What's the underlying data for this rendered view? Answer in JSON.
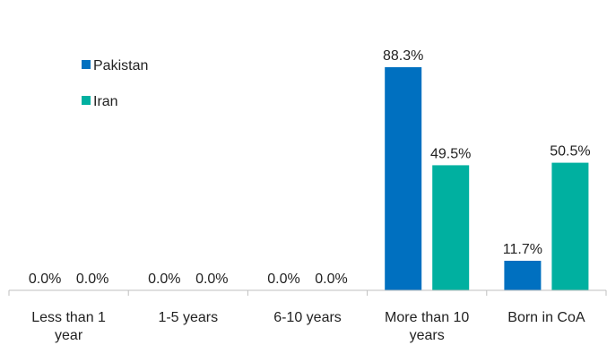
{
  "chart_data": {
    "type": "bar",
    "categories": [
      [
        "Less than 1",
        "year"
      ],
      [
        "1-5 years"
      ],
      [
        "6-10 years"
      ],
      [
        "More than 10",
        "years"
      ],
      [
        "Born in CoA"
      ]
    ],
    "series": [
      {
        "name": "Pakistan",
        "values": [
          0.0,
          0.0,
          0.0,
          88.3,
          11.7
        ],
        "labels": [
          "0.0%",
          "0.0%",
          "0.0%",
          "88.3%",
          "11.7%"
        ]
      },
      {
        "name": "Iran",
        "values": [
          0.0,
          0.0,
          0.0,
          49.5,
          50.5
        ],
        "labels": [
          "0.0%",
          "0.0%",
          "0.0%",
          "49.5%",
          "50.5%"
        ]
      }
    ],
    "ylim": [
      0,
      100
    ],
    "grid": false,
    "legend_position": "top-left",
    "colors": {
      "Pakistan": "#0070C0",
      "Iran": "#00B0A0",
      "axis": "#BFBFBF"
    }
  }
}
